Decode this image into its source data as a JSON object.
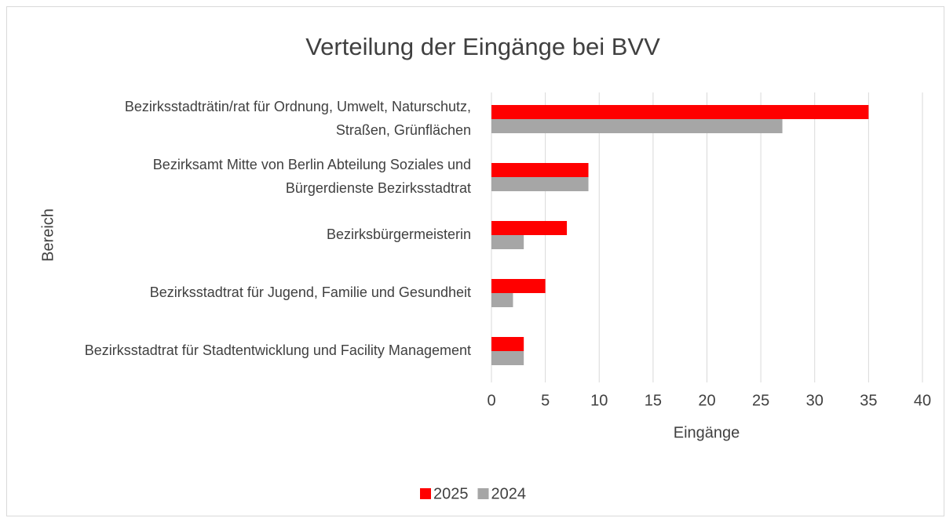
{
  "chart_data": {
    "type": "bar",
    "orientation": "horizontal",
    "title": "Verteilung der Eingänge bei BVV",
    "categories": [
      "Bezirksstadträtin/rat für Ordnung, Umwelt, Naturschutz, Straßen, Grünflächen",
      "Bezirksamt Mitte von Berlin Abteilung Soziales und Bürgerdienste Bezirksstadtrat",
      "Bezirksbürgermeisterin",
      "Bezirksstadtrat für Jugend, Familie und Gesundheit",
      "Bezirksstadtrat für Stadtentwicklung und Facility Management"
    ],
    "series": [
      {
        "name": "2025",
        "color": "#ff0000",
        "values": [
          35,
          9,
          7,
          5,
          3
        ]
      },
      {
        "name": "2024",
        "color": "#a6a6a6",
        "values": [
          27,
          9,
          3,
          2,
          3
        ]
      }
    ],
    "x_label": "Eingänge",
    "y_label": "Bereich",
    "xlim": [
      0,
      40
    ],
    "xticks": [
      0,
      5,
      10,
      15,
      20,
      25,
      30,
      35,
      40
    ],
    "grid": true,
    "legend": "bottom"
  }
}
